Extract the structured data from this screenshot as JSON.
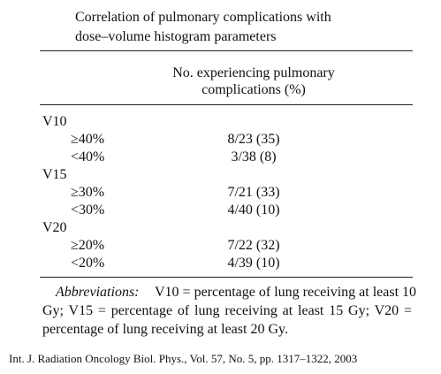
{
  "table": {
    "title": [
      "Correlation of pulmonary complications with",
      "dose–volume histogram parameters"
    ],
    "header": [
      "No. experiencing pulmonary",
      "complications (%)"
    ],
    "groups": [
      {
        "name": "V10",
        "rows": [
          [
            "≥40%",
            "8/23 (35)"
          ],
          [
            "<40%",
            "3/38 (8)"
          ]
        ]
      },
      {
        "name": "V15",
        "rows": [
          [
            "≥30%",
            "7/21 (33)"
          ],
          [
            "<30%",
            "4/40 (10)"
          ]
        ]
      },
      {
        "name": "V20",
        "rows": [
          [
            "≥20%",
            "7/22 (32)"
          ],
          [
            "<20%",
            "4/39 (10)"
          ]
        ]
      }
    ],
    "footnote": {
      "label": "Abbreviations:",
      "lines": [
        "V10 = percentage of lung receiving at least 10",
        "Gy; V15 = percentage of lung receiving at least 15 Gy; V20 =",
        "percentage of lung receiving at least 20 Gy."
      ]
    }
  },
  "citation": "Int. J. Radiation Oncology Biol. Phys., Vol. 57, No. 5, pp. 1317–1322, 2003"
}
